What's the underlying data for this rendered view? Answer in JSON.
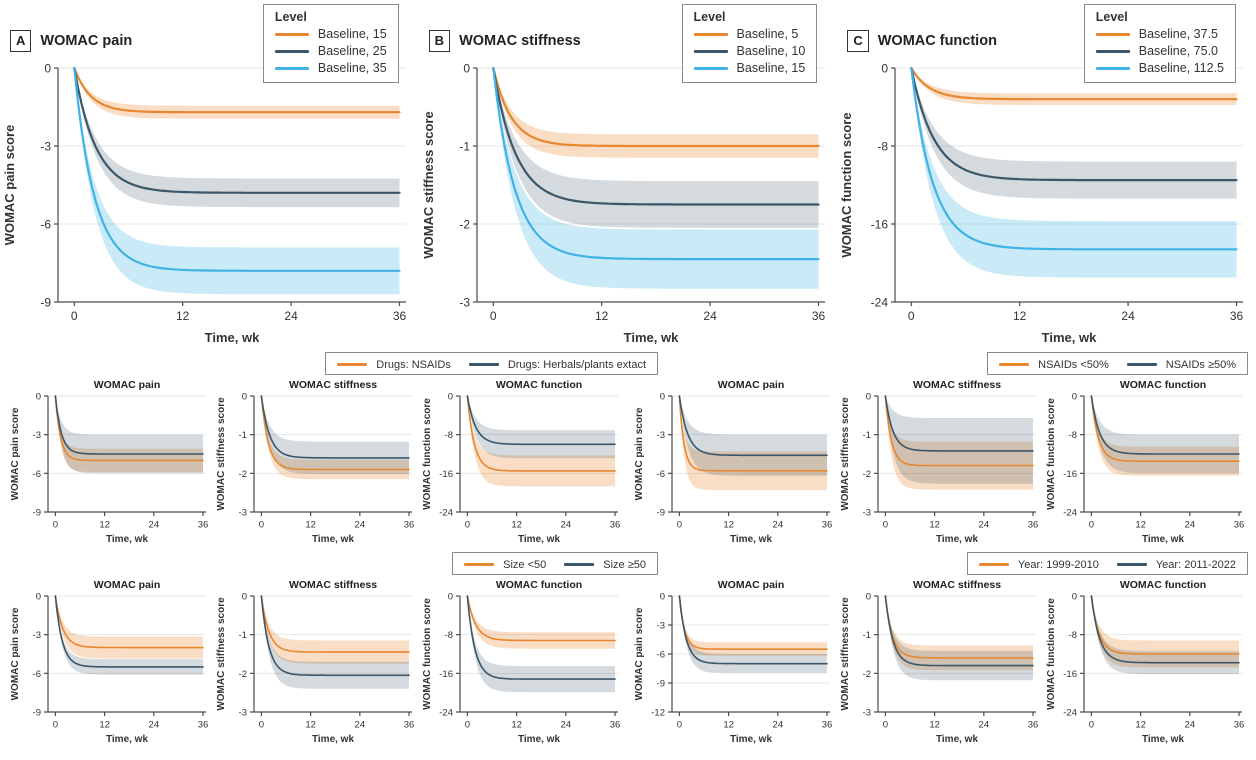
{
  "figure": {
    "x_axis_label": "Time, wk",
    "x_ticks": [
      0,
      12,
      24,
      36
    ]
  },
  "colors": {
    "orange": "#E8872F",
    "dark": "#3A576A",
    "blue": "#41B2E5",
    "axis": "#4A4A4A",
    "grid": "#E6E6E6",
    "text": "#333333"
  },
  "chart_data": {
    "type": "line",
    "xlabel": "Time, wk",
    "x_ticks": [
      0,
      12,
      24,
      36
    ],
    "x_max": 36,
    "note": "All curves start at 0 and decay exponentially to the plateau value; band = half-width of shaded CI at plateau; rate = per-week exponential rate",
    "large_panels": [
      {
        "letter": "A",
        "title": "WOMAC pain",
        "ylabel": "WOMAC pain score",
        "y_ticks": [
          0,
          -3,
          -6,
          -9
        ],
        "legend_title": "Level",
        "series": [
          {
            "label": "Baseline, 15",
            "color": "orange",
            "plateau": -1.7,
            "band": 0.25,
            "rate": 0.55
          },
          {
            "label": "Baseline, 25",
            "color": "dark",
            "plateau": -4.8,
            "band": 0.55,
            "rate": 0.42
          },
          {
            "label": "Baseline, 35",
            "color": "blue",
            "plateau": -7.8,
            "band": 0.9,
            "rate": 0.45
          }
        ]
      },
      {
        "letter": "B",
        "title": "WOMAC stiffness",
        "ylabel": "WOMAC stiffness score",
        "y_ticks": [
          0,
          -1,
          -2,
          -3
        ],
        "legend_title": "Level",
        "series": [
          {
            "label": "Baseline, 5",
            "color": "orange",
            "plateau": -1.0,
            "band": 0.15,
            "rate": 0.5
          },
          {
            "label": "Baseline, 10",
            "color": "dark",
            "plateau": -1.75,
            "band": 0.3,
            "rate": 0.4
          },
          {
            "label": "Baseline, 15",
            "color": "blue",
            "plateau": -2.45,
            "band": 0.38,
            "rate": 0.42
          }
        ]
      },
      {
        "letter": "C",
        "title": "WOMAC function",
        "ylabel": "WOMAC function score",
        "y_ticks": [
          0,
          -8,
          -16,
          -24
        ],
        "legend_title": "Level",
        "series": [
          {
            "label": "Baseline, 37.5",
            "color": "orange",
            "plateau": -3.2,
            "band": 0.6,
            "rate": 0.5
          },
          {
            "label": "Baseline, 75.0",
            "color": "dark",
            "plateau": -11.5,
            "band": 1.9,
            "rate": 0.4
          },
          {
            "label": "Baseline, 112.5",
            "color": "blue",
            "plateau": -18.6,
            "band": 2.9,
            "rate": 0.42
          }
        ]
      }
    ],
    "small_rows": [
      {
        "groups": [
          {
            "legend": [
              {
                "label": "Drugs: NSAIDs",
                "color": "orange"
              },
              {
                "label": "Drugs: Herbals/plants extact",
                "color": "dark"
              }
            ],
            "panels": [
              {
                "title": "WOMAC pain",
                "ylabel": "WOMAC pain score",
                "y_ticks": [
                  0,
                  -3,
                  -6,
                  -9
                ],
                "series": [
                  {
                    "label": "Drugs: NSAIDs",
                    "color": "orange",
                    "plateau": -5.0,
                    "band": 0.9,
                    "rate": 0.8
                  },
                  {
                    "label": "Drugs: Herbals/plants extact",
                    "color": "dark",
                    "plateau": -4.5,
                    "band": 1.5,
                    "rate": 0.7
                  }
                ]
              },
              {
                "title": "WOMAC stiffness",
                "ylabel": "WOMAC stiffness score",
                "y_ticks": [
                  0,
                  -1,
                  -2,
                  -3
                ],
                "series": [
                  {
                    "label": "Drugs: NSAIDs",
                    "color": "orange",
                    "plateau": -1.9,
                    "band": 0.25,
                    "rate": 0.6
                  },
                  {
                    "label": "Drugs: Herbals/plants extact",
                    "color": "dark",
                    "plateau": -1.6,
                    "band": 0.42,
                    "rate": 0.5
                  }
                ]
              },
              {
                "title": "WOMAC function",
                "ylabel": "WOMAC function score",
                "y_ticks": [
                  0,
                  -8,
                  -16,
                  -24
                ],
                "series": [
                  {
                    "label": "Drugs: NSAIDs",
                    "color": "orange",
                    "plateau": -15.5,
                    "band": 3.2,
                    "rate": 0.6
                  },
                  {
                    "label": "Drugs: Herbals/plants extact",
                    "color": "dark",
                    "plateau": -10.0,
                    "band": 2.9,
                    "rate": 0.5
                  }
                ]
              }
            ]
          },
          {
            "legend": [
              {
                "label": "NSAIDs <50%",
                "color": "orange"
              },
              {
                "label": "NSAIDs ≥50%",
                "color": "dark"
              }
            ],
            "panels": [
              {
                "title": "WOMAC pain",
                "ylabel": "WOMAC pain score",
                "y_ticks": [
                  0,
                  -3,
                  -6,
                  -9
                ],
                "series": [
                  {
                    "label": "NSAIDs <50%",
                    "color": "orange",
                    "plateau": -5.8,
                    "band": 1.5,
                    "rate": 0.9
                  },
                  {
                    "label": "NSAIDs ≥50%",
                    "color": "dark",
                    "plateau": -4.6,
                    "band": 1.6,
                    "rate": 0.5
                  }
                ]
              },
              {
                "title": "WOMAC stiffness",
                "ylabel": "WOMAC stiffness score",
                "y_ticks": [
                  0,
                  -1,
                  -2,
                  -3
                ],
                "series": [
                  {
                    "label": "NSAIDs <50%",
                    "color": "orange",
                    "plateau": -1.8,
                    "band": 0.62,
                    "rate": 0.7
                  },
                  {
                    "label": "NSAIDs ≥50%",
                    "color": "dark",
                    "plateau": -1.42,
                    "band": 0.85,
                    "rate": 0.55
                  }
                ]
              },
              {
                "title": "WOMAC function",
                "ylabel": "WOMAC function score",
                "y_ticks": [
                  0,
                  -8,
                  -16,
                  -24
                ],
                "series": [
                  {
                    "label": "NSAIDs <50%",
                    "color": "orange",
                    "plateau": -13.5,
                    "band": 3.0,
                    "rate": 0.6
                  },
                  {
                    "label": "NSAIDs ≥50%",
                    "color": "dark",
                    "plateau": -12.0,
                    "band": 4.0,
                    "rate": 0.5
                  }
                ]
              }
            ]
          }
        ]
      },
      {
        "groups": [
          {
            "legend": [
              {
                "label": "Size <50",
                "color": "orange"
              },
              {
                "label": "Size ≥50",
                "color": "dark"
              }
            ],
            "panels": [
              {
                "title": "WOMAC pain",
                "ylabel": "WOMAC pain score",
                "y_ticks": [
                  0,
                  -3,
                  -6,
                  -9
                ],
                "series": [
                  {
                    "label": "Size <50",
                    "color": "orange",
                    "plateau": -4.0,
                    "band": 0.85,
                    "rate": 0.55
                  },
                  {
                    "label": "Size ≥50",
                    "color": "dark",
                    "plateau": -5.5,
                    "band": 0.6,
                    "rate": 0.6
                  }
                ]
              },
              {
                "title": "WOMAC stiffness",
                "ylabel": "WOMAC stiffness score",
                "y_ticks": [
                  0,
                  -1,
                  -2,
                  -3
                ],
                "series": [
                  {
                    "label": "Size <50",
                    "color": "orange",
                    "plateau": -1.45,
                    "band": 0.3,
                    "rate": 0.55
                  },
                  {
                    "label": "Size ≥50",
                    "color": "dark",
                    "plateau": -2.05,
                    "band": 0.35,
                    "rate": 0.55
                  }
                ]
              },
              {
                "title": "WOMAC function",
                "ylabel": "WOMAC function score",
                "y_ticks": [
                  0,
                  -8,
                  -16,
                  -24
                ],
                "series": [
                  {
                    "label": "Size <50",
                    "color": "orange",
                    "plateau": -9.2,
                    "band": 1.7,
                    "rate": 0.5
                  },
                  {
                    "label": "Size ≥50",
                    "color": "dark",
                    "plateau": -17.2,
                    "band": 2.7,
                    "rate": 0.55
                  }
                ]
              }
            ]
          },
          {
            "legend": [
              {
                "label": "Year: 1999-2010",
                "color": "orange"
              },
              {
                "label": "Year: 2011-2022",
                "color": "dark"
              }
            ],
            "panels": [
              {
                "title": "WOMAC pain",
                "ylabel": "WOMAC pain score",
                "y_ticks": [
                  0,
                  -3,
                  -6,
                  -9,
                  -12
                ],
                "series": [
                  {
                    "label": "Year: 1999-2010",
                    "color": "orange",
                    "plateau": -5.5,
                    "band": 0.7,
                    "rate": 0.8
                  },
                  {
                    "label": "Year: 2011-2022",
                    "color": "dark",
                    "plateau": -7.0,
                    "band": 1.0,
                    "rate": 0.6
                  }
                ]
              },
              {
                "title": "WOMAC stiffness",
                "ylabel": "WOMAC stiffness score",
                "y_ticks": [
                  0,
                  -1,
                  -2,
                  -3
                ],
                "series": [
                  {
                    "label": "Year: 1999-2010",
                    "color": "orange",
                    "plateau": -1.6,
                    "band": 0.32,
                    "rate": 0.6
                  },
                  {
                    "label": "Year: 2011-2022",
                    "color": "dark",
                    "plateau": -1.8,
                    "band": 0.38,
                    "rate": 0.55
                  }
                ]
              },
              {
                "title": "WOMAC function",
                "ylabel": "WOMAC function score",
                "y_ticks": [
                  0,
                  -8,
                  -16,
                  -24
                ],
                "series": [
                  {
                    "label": "Year: 1999-2010",
                    "color": "orange",
                    "plateau": -12.0,
                    "band": 2.8,
                    "rate": 0.55
                  },
                  {
                    "label": "Year: 2011-2022",
                    "color": "dark",
                    "plateau": -13.8,
                    "band": 2.4,
                    "rate": 0.5
                  }
                ]
              }
            ]
          }
        ]
      }
    ]
  }
}
